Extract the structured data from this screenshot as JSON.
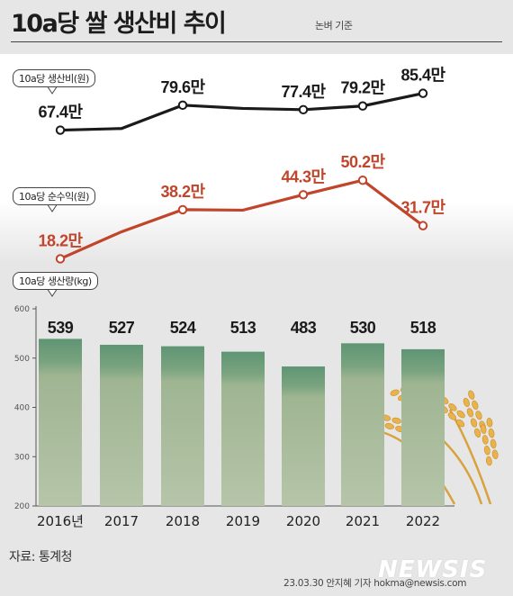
{
  "header": {
    "title": "10a당 쌀 생산비 추이",
    "subtitle": "논벼 기준"
  },
  "footer": {
    "source": "자료: 통계청",
    "credit": "23.03.30 안지혜 기자 hokma@newsis.com",
    "logo_text": "NEWSIS"
  },
  "colors": {
    "cost_line": "#1a1a1a",
    "income_line": "#c0452b",
    "bar_top": "#5f9574",
    "bar_bottom": "#b6c5a9",
    "wheat": "#e9b24a"
  },
  "chart_data": [
    {
      "type": "line",
      "title": "10a당 생산비(원)",
      "categories": [
        "2016년",
        "2017",
        "2018",
        "2019",
        "2020",
        "2021",
        "2022"
      ],
      "values": [
        674000,
        682000,
        796000,
        780000,
        774000,
        792000,
        854000
      ],
      "labels": [
        "67.4만",
        "",
        "79.6만",
        "",
        "77.4만",
        "79.2만",
        "85.4만"
      ],
      "color": "#1a1a1a"
    },
    {
      "type": "line",
      "title": "10a당 순수익(원)",
      "categories": [
        "2016년",
        "2017",
        "2018",
        "2019",
        "2020",
        "2021",
        "2022"
      ],
      "values": [
        182000,
        292000,
        382000,
        380000,
        443000,
        502000,
        317000
      ],
      "labels": [
        "18.2만",
        "",
        "38.2만",
        "",
        "44.3만",
        "50.2만",
        "31.7만"
      ],
      "color": "#c0452b"
    },
    {
      "type": "bar",
      "title": "10a당 생산량(kg)",
      "categories": [
        "2016년",
        "2017",
        "2018",
        "2019",
        "2020",
        "2021",
        "2022"
      ],
      "values": [
        539,
        527,
        524,
        513,
        483,
        530,
        518
      ],
      "labels": [
        "539",
        "527",
        "524",
        "513",
        "483",
        "530",
        "518"
      ],
      "ylim": [
        200,
        600
      ],
      "yticks": [
        "600",
        "500",
        "400",
        "300",
        "200"
      ]
    }
  ]
}
